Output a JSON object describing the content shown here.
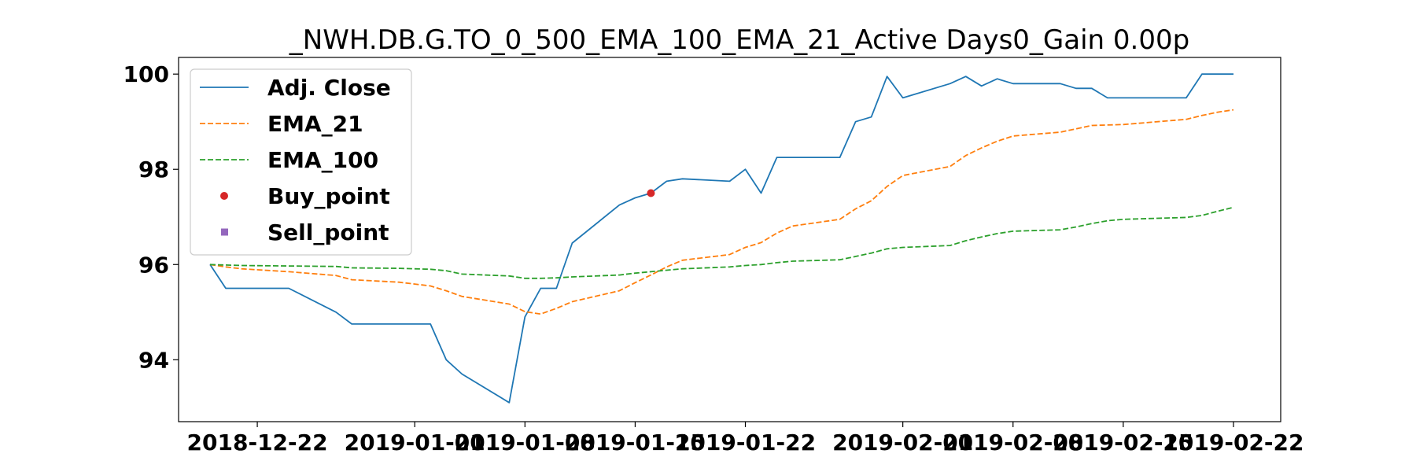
{
  "chart_data": {
    "type": "line",
    "title": "_NWH.DB.G.TO_0_500_EMA_100_EMA_21_Active Days0_Gain   0.00p",
    "xlabel": "",
    "ylabel": "",
    "x_ticks": [
      "2018-12-22",
      "2019-01-01",
      "2019-01-08",
      "2019-01-15",
      "2019-01-22",
      "2019-02-01",
      "2019-02-08",
      "2019-02-15",
      "2019-02-22"
    ],
    "y_ticks": [
      "94",
      "96",
      "98",
      "100"
    ],
    "xlim": [
      "2018-12-17",
      "2019-02-25"
    ],
    "ylim": [
      92.7,
      100.35
    ],
    "grid": false,
    "legend_position": "upper-left",
    "x": [
      "2018-12-19",
      "2018-12-20",
      "2018-12-21",
      "2018-12-24",
      "2018-12-27",
      "2018-12-28",
      "2018-12-31",
      "2019-01-02",
      "2019-01-03",
      "2019-01-04",
      "2019-01-07",
      "2019-01-08",
      "2019-01-09",
      "2019-01-10",
      "2019-01-11",
      "2019-01-14",
      "2019-01-15",
      "2019-01-16",
      "2019-01-17",
      "2019-01-18",
      "2019-01-21",
      "2019-01-22",
      "2019-01-23",
      "2019-01-24",
      "2019-01-25",
      "2019-01-28",
      "2019-01-29",
      "2019-01-30",
      "2019-01-31",
      "2019-02-01",
      "2019-02-04",
      "2019-02-05",
      "2019-02-06",
      "2019-02-07",
      "2019-02-08",
      "2019-02-11",
      "2019-02-12",
      "2019-02-13",
      "2019-02-14",
      "2019-02-15",
      "2019-02-19",
      "2019-02-20",
      "2019-02-21",
      "2019-02-22"
    ],
    "series": [
      {
        "name": "Adj. Close",
        "color": "#1f77b4",
        "style": "solid",
        "values": [
          96.0,
          95.5,
          95.5,
          95.5,
          95.0,
          94.75,
          94.75,
          94.75,
          94.0,
          93.7,
          93.1,
          94.9,
          95.5,
          95.5,
          96.45,
          97.25,
          97.4,
          97.5,
          97.75,
          97.8,
          97.75,
          98.0,
          97.5,
          98.25,
          98.25,
          98.25,
          99.0,
          99.1,
          99.95,
          99.5,
          99.8,
          99.95,
          99.75,
          99.9,
          99.8,
          99.8,
          99.7,
          99.7,
          99.5,
          99.5,
          99.5,
          100.0,
          100.0,
          100.0
        ]
      },
      {
        "name": "EMA_21",
        "color": "#ff7f0e",
        "style": "dashed",
        "values": [
          96.0,
          95.95,
          95.91,
          95.85,
          95.77,
          95.68,
          95.63,
          95.55,
          95.45,
          95.33,
          95.17,
          95.01,
          94.96,
          95.08,
          95.22,
          95.45,
          95.62,
          95.78,
          95.95,
          96.09,
          96.21,
          96.36,
          96.46,
          96.66,
          96.81,
          96.95,
          97.17,
          97.34,
          97.64,
          97.87,
          98.06,
          98.29,
          98.45,
          98.59,
          98.7,
          98.78,
          98.85,
          98.92,
          98.93,
          98.94,
          99.05,
          99.13,
          99.2,
          99.25
        ]
      },
      {
        "name": "EMA_100",
        "color": "#2ca02c",
        "style": "dashed",
        "values": [
          96.0,
          95.99,
          95.98,
          95.97,
          95.96,
          95.93,
          95.92,
          95.9,
          95.87,
          95.8,
          95.76,
          95.71,
          95.71,
          95.72,
          95.74,
          95.78,
          95.82,
          95.85,
          95.88,
          95.91,
          95.95,
          95.98,
          96.0,
          96.04,
          96.07,
          96.1,
          96.17,
          96.24,
          96.33,
          96.36,
          96.4,
          96.5,
          96.58,
          96.65,
          96.7,
          96.73,
          96.79,
          96.86,
          96.92,
          96.95,
          96.99,
          97.03,
          97.12,
          97.2
        ]
      }
    ],
    "buy_points": [
      {
        "x": "2019-01-16",
        "y": 97.5
      }
    ],
    "sell_points": [],
    "legend": [
      {
        "label": "Adj. Close",
        "marker": "solid-line",
        "color": "#1f77b4"
      },
      {
        "label": "EMA_21",
        "marker": "dashed-line",
        "color": "#ff7f0e"
      },
      {
        "label": "EMA_100",
        "marker": "dashed-line",
        "color": "#2ca02c"
      },
      {
        "label": "Buy_point",
        "marker": "circle",
        "color": "#d62728"
      },
      {
        "label": "Sell_point",
        "marker": "square",
        "color": "#9467bd"
      }
    ]
  }
}
